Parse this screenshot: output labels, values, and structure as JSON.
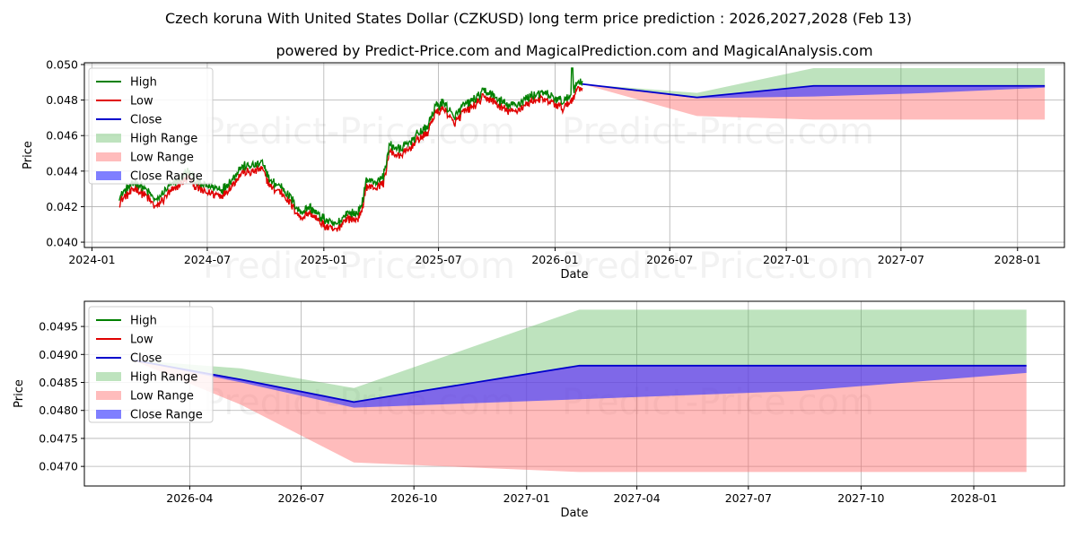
{
  "title_line1": "Czech koruna With United States Dollar (CZKUSD) long term price prediction : 2026,2027,2028 (Feb 13)",
  "title_line2": "powered by Predict-Price.com and MagicalPrediction.com and MagicalAnalysis.com",
  "watermark": "Predict-Price.com",
  "colors": {
    "high": "#008000",
    "low": "#e00000",
    "close": "#0000cc",
    "high_range": "#5cb85c",
    "low_range": "#ff6b6b",
    "close_range": "#3b3bff"
  },
  "chart_data": [
    {
      "type": "line",
      "title": "",
      "xlabel": "Date",
      "ylabel": "Price",
      "xlim": [
        "2023-12-20",
        "2028-03-15"
      ],
      "ylim": [
        0.0397,
        0.0501
      ],
      "grid": true,
      "legend_position": "top-left",
      "x_ticks": [
        {
          "date": "2024-01-01",
          "label": "2024-01"
        },
        {
          "date": "2024-07-01",
          "label": "2024-07"
        },
        {
          "date": "2025-01-01",
          "label": "2025-01"
        },
        {
          "date": "2025-07-01",
          "label": "2025-07"
        },
        {
          "date": "2026-01-01",
          "label": "2026-01"
        },
        {
          "date": "2026-07-01",
          "label": "2026-07"
        },
        {
          "date": "2027-01-01",
          "label": "2027-01"
        },
        {
          "date": "2027-07-01",
          "label": "2027-07"
        },
        {
          "date": "2028-01-01",
          "label": "2028-01"
        }
      ],
      "y_ticks": [
        {
          "value": 0.04,
          "label": "0.040"
        },
        {
          "value": 0.042,
          "label": "0.042"
        },
        {
          "value": 0.044,
          "label": "0.044"
        },
        {
          "value": 0.046,
          "label": "0.046"
        },
        {
          "value": 0.048,
          "label": "0.048"
        },
        {
          "value": 0.05,
          "label": "0.050"
        }
      ],
      "legend": [
        "High",
        "Low",
        "Close",
        "High Range",
        "Low Range",
        "Close Range"
      ],
      "history": {
        "anchors": [
          [
            "2024-02-13",
            0.0424
          ],
          [
            "2024-02-25",
            0.0428
          ],
          [
            "2024-03-10",
            0.0432
          ],
          [
            "2024-03-25",
            0.0428
          ],
          [
            "2024-04-12",
            0.0421
          ],
          [
            "2024-04-28",
            0.0428
          ],
          [
            "2024-05-15",
            0.0433
          ],
          [
            "2024-06-01",
            0.0438
          ],
          [
            "2024-06-12",
            0.0433
          ],
          [
            "2024-06-25",
            0.043
          ],
          [
            "2024-07-10",
            0.0429
          ],
          [
            "2024-07-25",
            0.0428
          ],
          [
            "2024-08-10",
            0.0434
          ],
          [
            "2024-08-25",
            0.0441
          ],
          [
            "2024-09-10",
            0.0441
          ],
          [
            "2024-09-25",
            0.0443
          ],
          [
            "2024-10-10",
            0.0432
          ],
          [
            "2024-10-25",
            0.043
          ],
          [
            "2024-11-10",
            0.0423
          ],
          [
            "2024-11-25",
            0.0415
          ],
          [
            "2024-12-10",
            0.0418
          ],
          [
            "2024-12-25",
            0.0413
          ],
          [
            "2025-01-10",
            0.0409
          ],
          [
            "2025-01-22",
            0.0408
          ],
          [
            "2025-02-05",
            0.0415
          ],
          [
            "2025-02-20",
            0.0414
          ],
          [
            "2025-03-02",
            0.0418
          ],
          [
            "2025-03-08",
            0.0433
          ],
          [
            "2025-03-25",
            0.0432
          ],
          [
            "2025-04-05",
            0.0435
          ],
          [
            "2025-04-15",
            0.0453
          ],
          [
            "2025-05-01",
            0.045
          ],
          [
            "2025-05-15",
            0.0454
          ],
          [
            "2025-06-01",
            0.046
          ],
          [
            "2025-06-12",
            0.0462
          ],
          [
            "2025-06-25",
            0.0474
          ],
          [
            "2025-07-10",
            0.0477
          ],
          [
            "2025-07-25",
            0.0468
          ],
          [
            "2025-08-10",
            0.0475
          ],
          [
            "2025-08-25",
            0.0478
          ],
          [
            "2025-09-10",
            0.0483
          ],
          [
            "2025-09-22",
            0.0482
          ],
          [
            "2025-10-05",
            0.0478
          ],
          [
            "2025-10-20",
            0.0475
          ],
          [
            "2025-11-05",
            0.0476
          ],
          [
            "2025-11-20",
            0.048
          ],
          [
            "2025-12-05",
            0.0482
          ],
          [
            "2025-12-20",
            0.0481
          ],
          [
            "2026-01-01",
            0.0479
          ],
          [
            "2026-01-15",
            0.0477
          ],
          [
            "2026-01-28",
            0.0482
          ],
          [
            "2026-02-05",
            0.0488
          ],
          [
            "2026-02-13",
            0.0489
          ]
        ],
        "high_spike": {
          "date": "2026-01-28",
          "value": 0.0498
        }
      },
      "forecast": {
        "dates": [
          "2026-02-13",
          "2026-08-13",
          "2027-02-13",
          "2027-08-13",
          "2028-02-13"
        ],
        "close": [
          0.0489,
          0.04815,
          0.0488,
          0.0488,
          0.0488
        ],
        "high": [
          0.0489,
          0.0484,
          0.0498,
          0.0498,
          0.0498
        ],
        "low": [
          0.0489,
          0.0471,
          0.0469,
          0.0469,
          0.0469
        ],
        "close_range_low": [
          0.0489,
          0.0481,
          0.0482,
          0.0484,
          0.0487
        ]
      }
    },
    {
      "type": "line",
      "title": "",
      "xlabel": "Date",
      "ylabel": "Price",
      "xlim": [
        "2026-01-05",
        "2028-03-15"
      ],
      "ylim": [
        0.04665,
        0.04995
      ],
      "grid": true,
      "legend_position": "top-left",
      "x_ticks": [
        {
          "date": "2026-04-01",
          "label": "2026-04"
        },
        {
          "date": "2026-07-01",
          "label": "2026-07"
        },
        {
          "date": "2026-10-01",
          "label": "2026-10"
        },
        {
          "date": "2027-01-01",
          "label": "2027-01"
        },
        {
          "date": "2027-04-01",
          "label": "2027-04"
        },
        {
          "date": "2027-07-01",
          "label": "2027-07"
        },
        {
          "date": "2027-10-01",
          "label": "2027-10"
        },
        {
          "date": "2028-01-01",
          "label": "2028-01"
        }
      ],
      "y_ticks": [
        {
          "value": 0.047,
          "label": "0.0470"
        },
        {
          "value": 0.0475,
          "label": "0.0475"
        },
        {
          "value": 0.048,
          "label": "0.0480"
        },
        {
          "value": 0.0485,
          "label": "0.0485"
        },
        {
          "value": 0.049,
          "label": "0.0490"
        },
        {
          "value": 0.0495,
          "label": "0.0495"
        }
      ],
      "legend": [
        "High",
        "Low",
        "Close",
        "High Range",
        "Low Range",
        "Close Range"
      ],
      "forecast": {
        "dates": [
          "2026-02-13",
          "2026-05-13",
          "2026-08-13",
          "2027-02-13",
          "2027-08-13",
          "2028-02-13"
        ],
        "close": [
          0.0489,
          0.04855,
          0.04815,
          0.0488,
          0.0488,
          0.0488
        ],
        "high": [
          0.0489,
          0.04875,
          0.0484,
          0.0498,
          0.0498,
          0.0498
        ],
        "low": [
          0.0489,
          0.0481,
          0.04707,
          0.0469,
          0.0469,
          0.0469
        ],
        "close_range_low": [
          0.0489,
          0.0485,
          0.04805,
          0.0482,
          0.04835,
          0.04867
        ]
      }
    }
  ]
}
